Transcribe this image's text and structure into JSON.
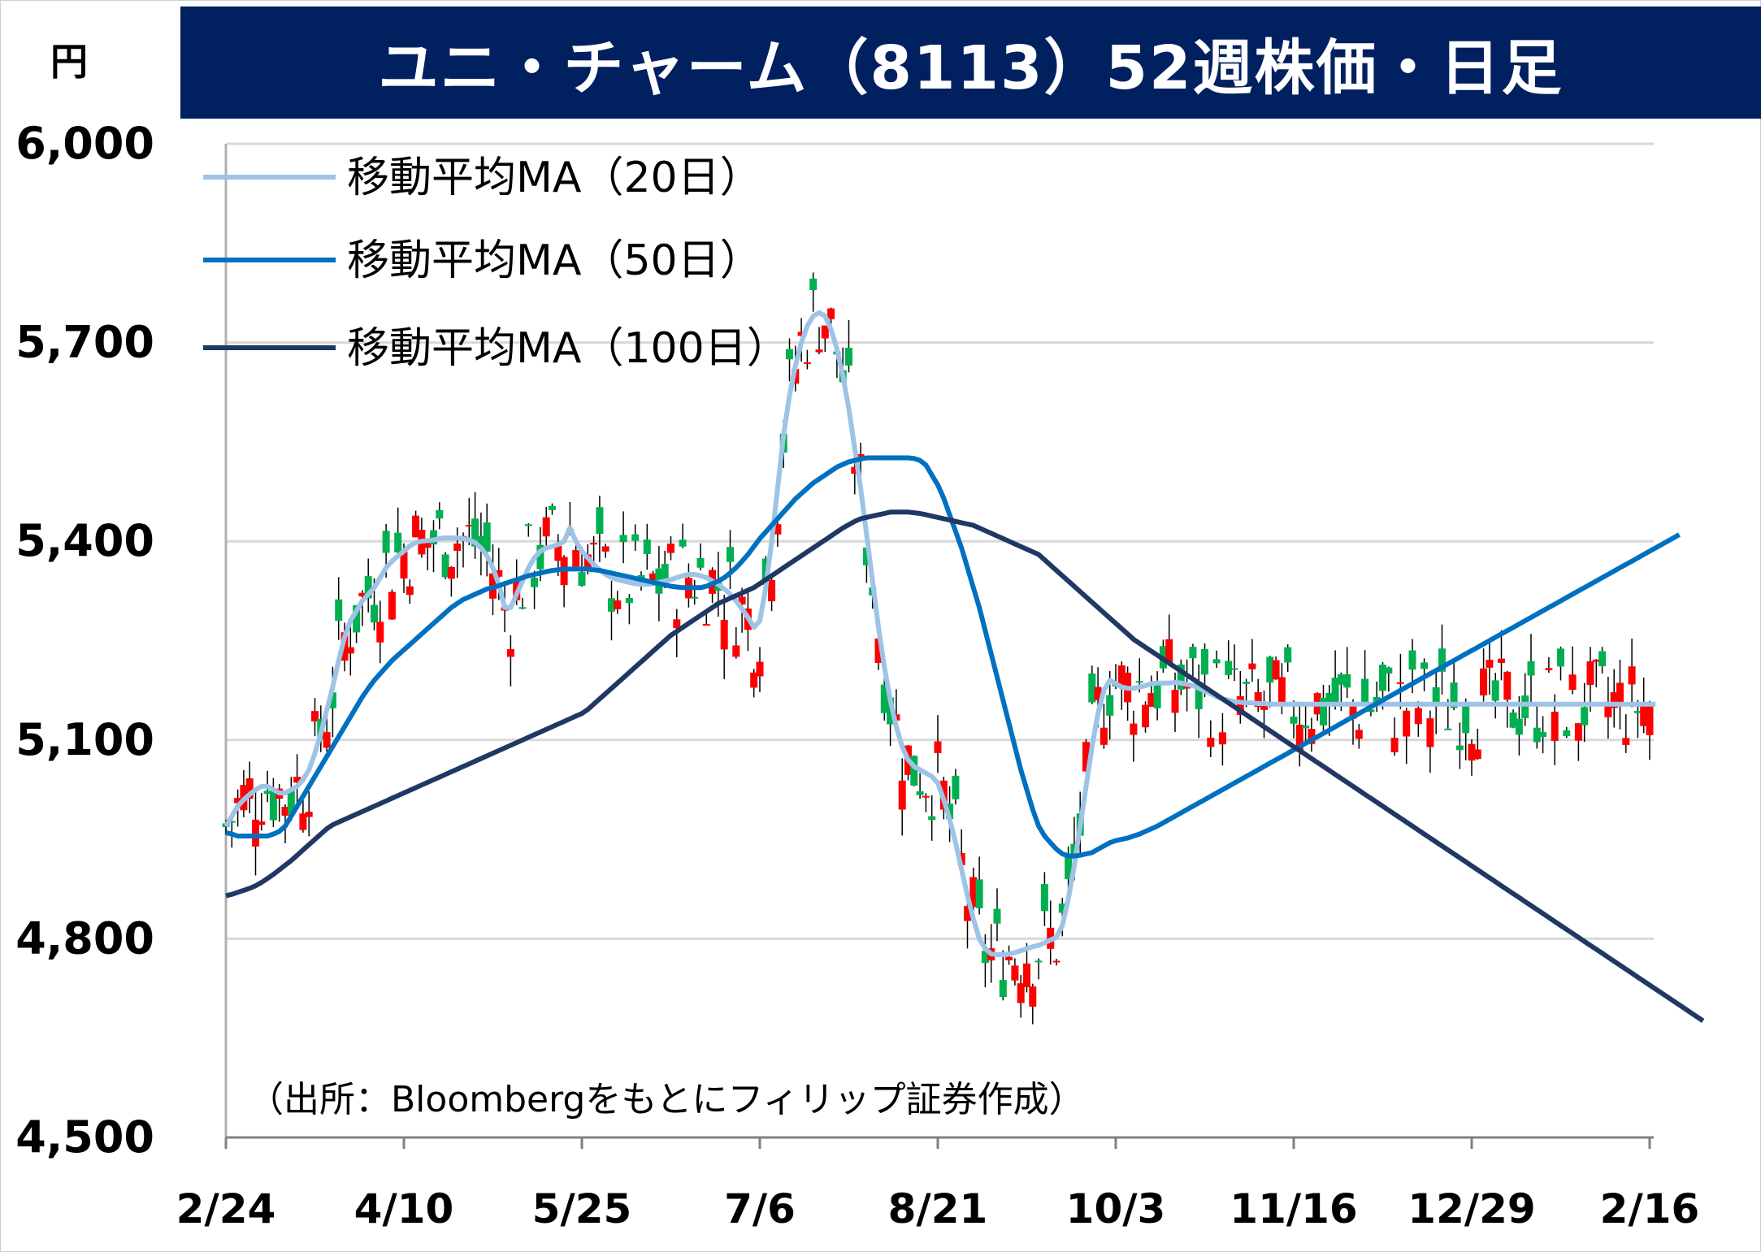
{
  "title": "ユニ・チャーム（8113）52週株価・日足",
  "unit": "円",
  "source": "（出所：Bloombergをもとにフィリップ証券作成）",
  "colors": {
    "title_bg": "#002060",
    "up": "#00b050",
    "down": "#ff0000",
    "ma20": "#9dc3e6",
    "ma50": "#0070c0",
    "ma100": "#203864",
    "grid": "#d9d9d9"
  },
  "chart_data": {
    "type": "candlestick",
    "ylim": [
      4500,
      6000
    ],
    "y_ticks": [
      "6,000",
      "5,700",
      "5,400",
      "5,100",
      "4,800",
      "4,500"
    ],
    "y_tick_values": [
      6000,
      5700,
      5400,
      5100,
      4800,
      4500
    ],
    "x_ticks": [
      "2/24",
      "4/10",
      "5/25",
      "7/6",
      "8/21",
      "10/3",
      "11/16",
      "12/29",
      "2/16"
    ],
    "x_tick_index": [
      0,
      30,
      60,
      90,
      120,
      150,
      180,
      210,
      240
    ],
    "grid": true,
    "legend_position": "top-left",
    "series": [
      {
        "name": "移動平均MA（20日）",
        "color": "#9dc3e6",
        "values": [
          4970,
          4985,
          5000,
          5010,
          5018,
          5025,
          5030,
          5030,
          5025,
          5020,
          5020,
          5025,
          5030,
          5040,
          5055,
          5080,
          5110,
          5145,
          5180,
          5220,
          5255,
          5280,
          5295,
          5310,
          5320,
          5330,
          5345,
          5360,
          5370,
          5378,
          5385,
          5393,
          5398,
          5400,
          5401,
          5402,
          5404,
          5405,
          5405,
          5405,
          5404,
          5402,
          5398,
          5390,
          5378,
          5360,
          5335,
          5300,
          5300,
          5320,
          5340,
          5360,
          5375,
          5385,
          5390,
          5392,
          5395,
          5400,
          5420,
          5400,
          5385,
          5375,
          5365,
          5357,
          5350,
          5345,
          5342,
          5340,
          5338,
          5336,
          5335,
          5335,
          5336,
          5338,
          5340,
          5342,
          5345,
          5348,
          5350,
          5350,
          5348,
          5345,
          5340,
          5335,
          5328,
          5320,
          5310,
          5298,
          5285,
          5270,
          5280,
          5330,
          5400,
          5480,
          5560,
          5620,
          5665,
          5700,
          5725,
          5740,
          5745,
          5740,
          5720,
          5690,
          5650,
          5600,
          5540,
          5480,
          5410,
          5340,
          5270,
          5210,
          5160,
          5120,
          5090,
          5070,
          5060,
          5055,
          5050,
          5045,
          5035,
          5010,
          4980,
          4945,
          4905,
          4865,
          4830,
          4800,
          4785,
          4777,
          4776,
          4776,
          4777,
          4779,
          4782,
          4785,
          4788,
          4790,
          4794,
          4798,
          4802,
          4820,
          4860,
          4910,
          4970,
          5030,
          5090,
          5140,
          5175,
          5190,
          5185,
          5180,
          5178,
          5178,
          5180,
          5182,
          5185,
          5186,
          5186,
          5186,
          5187,
          5186,
          5184,
          5182,
          5178,
          5174,
          5170,
          5165,
          5162,
          5160,
          5158,
          5157,
          5156,
          5156,
          5155,
          5155,
          5154,
          5154,
          5154,
          5154,
          5154,
          5154,
          5154,
          5154,
          5154,
          5154,
          5154,
          5154,
          5154,
          5154,
          5154,
          5154,
          5154,
          5154,
          5154,
          5154,
          5154,
          5154,
          5154,
          5154,
          5154,
          5154,
          5154,
          5154,
          5154,
          5154,
          5154,
          5154,
          5154,
          5154,
          5154,
          5154,
          5154,
          5154,
          5154,
          5154,
          5154,
          5154,
          5154,
          5154,
          5154,
          5154,
          5154,
          5154,
          5154,
          5154,
          5154,
          5154,
          5154,
          5154,
          5154,
          5154,
          5154,
          5154,
          5154,
          5154,
          5154,
          5154,
          5154,
          5154,
          5154,
          5154
        ]
      },
      {
        "name": "移動平均MA（50日）",
        "color": "#0070c0",
        "values": [
          4960,
          4958,
          4955,
          4955,
          4955,
          4955,
          4955,
          4955,
          4958,
          4962,
          4970,
          4985,
          5000,
          5015,
          5030,
          5045,
          5060,
          5075,
          5090,
          5105,
          5120,
          5135,
          5150,
          5165,
          5178,
          5190,
          5200,
          5210,
          5220,
          5228,
          5236,
          5244,
          5252,
          5260,
          5268,
          5276,
          5284,
          5292,
          5300,
          5306,
          5312,
          5316,
          5320,
          5324,
          5328,
          5330,
          5333,
          5336,
          5339,
          5342,
          5345,
          5348,
          5350,
          5352,
          5354,
          5356,
          5357,
          5358,
          5358,
          5358,
          5358,
          5358,
          5357,
          5356,
          5354,
          5352,
          5350,
          5348,
          5346,
          5344,
          5342,
          5340,
          5338,
          5336,
          5334,
          5332,
          5331,
          5330,
          5330,
          5330,
          5330,
          5332,
          5336,
          5340,
          5345,
          5352,
          5360,
          5370,
          5380,
          5392,
          5404,
          5414,
          5424,
          5434,
          5444,
          5454,
          5464,
          5472,
          5480,
          5488,
          5494,
          5500,
          5506,
          5512,
          5516,
          5520,
          5522,
          5524,
          5526,
          5526,
          5526,
          5526,
          5526,
          5526,
          5526,
          5526,
          5525,
          5522,
          5515,
          5500,
          5485,
          5465,
          5440,
          5415,
          5390,
          5360,
          5330,
          5300,
          5265,
          5230,
          5195,
          5160,
          5125,
          5090,
          5055,
          5025,
          4995,
          4970,
          4955,
          4945,
          4935,
          4928,
          4925,
          4925,
          4926,
          4928,
          4930,
          4935,
          4940,
          4945,
          4948,
          4950,
          4952,
          4955,
          4958,
          4962,
          4966,
          4970,
          4975,
          4980,
          4985,
          4990,
          4995,
          5000,
          5005,
          5010,
          5015,
          5020,
          5025,
          5030,
          5035,
          5040,
          5045,
          5050,
          5055,
          5060,
          5065,
          5070,
          5075,
          5080,
          5085,
          5090,
          5095,
          5100,
          5105,
          5110,
          5115,
          5120,
          5125,
          5130,
          5135,
          5140,
          5145,
          5150,
          5155,
          5160,
          5165,
          5170,
          5175,
          5180,
          5185,
          5190,
          5195,
          5200,
          5205,
          5210,
          5215,
          5220,
          5225,
          5230,
          5235,
          5240,
          5245,
          5250,
          5255,
          5260,
          5265,
          5270,
          5275,
          5280,
          5285,
          5290,
          5295,
          5300,
          5305,
          5310,
          5315,
          5320,
          5325,
          5330,
          5335,
          5340,
          5345,
          5350,
          5355,
          5360,
          5365,
          5370,
          5375,
          5380,
          5385,
          5390,
          5395,
          5400,
          5405,
          5410
        ]
      },
      {
        "name": "移動平均MA（100日）",
        "color": "#203864",
        "values": [
          4865,
          4867,
          4870,
          4873,
          4876,
          4880,
          4885,
          4891,
          4897,
          4904,
          4911,
          4918,
          4926,
          4934,
          4942,
          4950,
          4958,
          4966,
          4972,
          4976,
          4980,
          4984,
          4988,
          4992,
          4996,
          5000,
          5004,
          5008,
          5012,
          5016,
          5020,
          5024,
          5028,
          5032,
          5036,
          5040,
          5044,
          5048,
          5052,
          5056,
          5060,
          5064,
          5068,
          5072,
          5076,
          5080,
          5084,
          5088,
          5092,
          5096,
          5100,
          5104,
          5108,
          5112,
          5116,
          5120,
          5124,
          5128,
          5132,
          5136,
          5140,
          5146,
          5154,
          5162,
          5170,
          5178,
          5186,
          5194,
          5202,
          5210,
          5218,
          5226,
          5234,
          5242,
          5250,
          5258,
          5264,
          5270,
          5276,
          5282,
          5288,
          5294,
          5300,
          5306,
          5310,
          5314,
          5318,
          5322,
          5326,
          5330,
          5336,
          5342,
          5348,
          5354,
          5360,
          5366,
          5372,
          5378,
          5384,
          5390,
          5396,
          5402,
          5408,
          5414,
          5420,
          5425,
          5430,
          5434,
          5436,
          5438,
          5440,
          5442,
          5444,
          5444,
          5444,
          5444,
          5443,
          5442,
          5440,
          5438,
          5436,
          5434,
          5432,
          5430,
          5428,
          5426,
          5424,
          5420,
          5416,
          5412,
          5408,
          5404,
          5400,
          5396,
          5392,
          5388,
          5384,
          5380,
          5372,
          5364,
          5356,
          5348,
          5340,
          5332,
          5324,
          5316,
          5308,
          5300,
          5292,
          5284,
          5276,
          5268,
          5260,
          5252,
          5246,
          5240,
          5234,
          5228,
          5222,
          5216,
          5210,
          5204,
          5198,
          5192,
          5186,
          5180,
          5174,
          5168,
          5162,
          5156,
          5150,
          5144,
          5138,
          5132,
          5126,
          5120,
          5114,
          5108,
          5102,
          5096,
          5090,
          5084,
          5078,
          5072,
          5066,
          5060,
          5054,
          5048,
          5042,
          5036,
          5030,
          5024,
          5018,
          5012,
          5006,
          5000,
          4994,
          4988,
          4982,
          4976,
          4970,
          4964,
          4958,
          4952,
          4946,
          4940,
          4934,
          4928,
          4922,
          4916,
          4910,
          4904,
          4898,
          4892,
          4886,
          4880,
          4874,
          4868,
          4862,
          4856,
          4850,
          4844,
          4838,
          4832,
          4826,
          4820,
          4814,
          4808,
          4802,
          4796,
          4790,
          4784,
          4778,
          4772,
          4766,
          4760,
          4754,
          4748,
          4742,
          4736,
          4730,
          4724,
          4718,
          4712,
          4706,
          4700,
          4694,
          4688,
          4682,
          4676
        ]
      }
    ]
  }
}
